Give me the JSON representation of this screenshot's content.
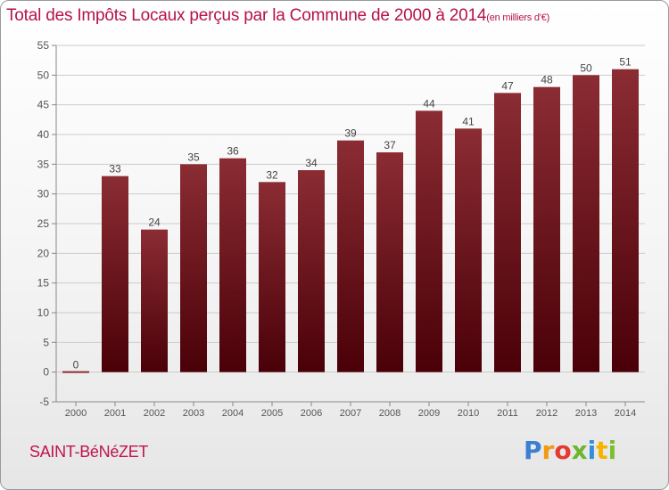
{
  "header": {
    "title": "Total des Impôts Locaux perçus par la Commune de 2000 à 2014",
    "unit": "(en milliers d'€)"
  },
  "footer": {
    "commune": "SAINT-BéNéZET",
    "logo": [
      "P",
      "r",
      "o",
      "x",
      "i",
      "t",
      "i"
    ]
  },
  "colors": {
    "bar": "#6b0d15",
    "bar_highlight": "#8b2c33",
    "title": "#b5124a",
    "grid": "#cccccc"
  },
  "chart_data": {
    "type": "bar",
    "title": "Total des Impôts Locaux perçus par la Commune de 2000 à 2014",
    "subtitle": "(en milliers d'€)",
    "xlabel": "",
    "ylabel": "",
    "categories": [
      "2000",
      "2001",
      "2002",
      "2003",
      "2004",
      "2005",
      "2006",
      "2007",
      "2008",
      "2009",
      "2010",
      "2011",
      "2012",
      "2013",
      "2014"
    ],
    "values": [
      0,
      33,
      24,
      35,
      36,
      32,
      34,
      39,
      37,
      44,
      41,
      47,
      48,
      50,
      51
    ],
    "ylim": [
      -5,
      55
    ],
    "yticks": [
      -5,
      0,
      5,
      10,
      15,
      20,
      25,
      30,
      35,
      40,
      45,
      50,
      55
    ],
    "grid": true
  }
}
